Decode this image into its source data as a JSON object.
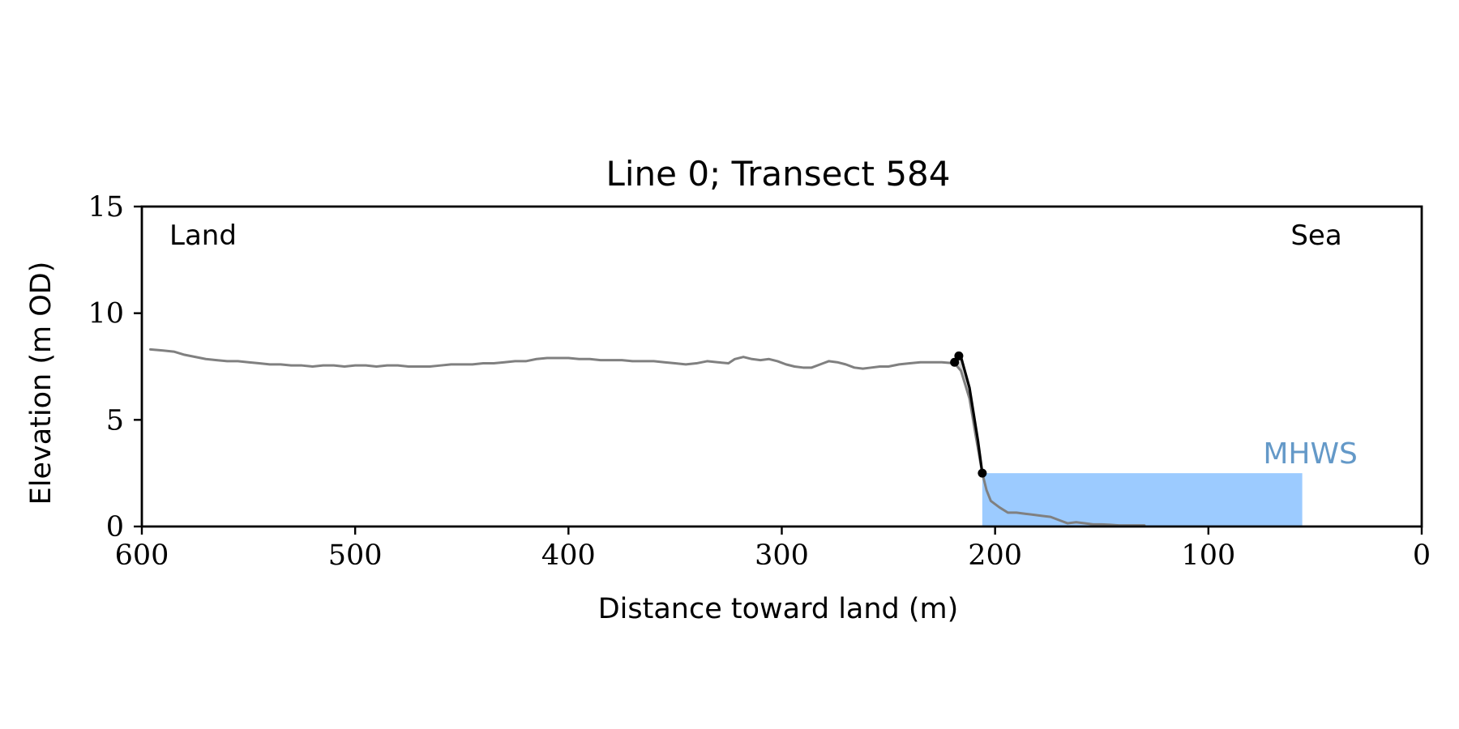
{
  "chart_data": {
    "type": "line",
    "title": "Line 0; Transect 584",
    "xlabel": "Distance toward land (m)",
    "ylabel": "Elevation (m OD)",
    "xlim": [
      600,
      0
    ],
    "ylim": [
      0,
      15
    ],
    "x_ticks": [
      "600",
      "500",
      "400",
      "300",
      "200",
      "100",
      "0"
    ],
    "y_ticks": [
      "0",
      "5",
      "10",
      "15"
    ],
    "grid": false,
    "annotations": {
      "land": "Land",
      "sea": "Sea",
      "mhws": "MHWS"
    },
    "mhws": {
      "elevation": 2.5,
      "x_start": 206,
      "x_end": 56
    },
    "series": [
      {
        "values": [
          [
            596,
            8.3
          ],
          [
            590,
            8.25
          ],
          [
            585,
            8.2
          ],
          [
            580,
            8.05
          ],
          [
            575,
            7.95
          ],
          [
            570,
            7.85
          ],
          [
            565,
            7.8
          ],
          [
            560,
            7.75
          ],
          [
            555,
            7.75
          ],
          [
            550,
            7.7
          ],
          [
            545,
            7.65
          ],
          [
            540,
            7.6
          ],
          [
            535,
            7.6
          ],
          [
            530,
            7.55
          ],
          [
            525,
            7.55
          ],
          [
            520,
            7.5
          ],
          [
            515,
            7.55
          ],
          [
            510,
            7.55
          ],
          [
            505,
            7.5
          ],
          [
            500,
            7.55
          ],
          [
            495,
            7.55
          ],
          [
            490,
            7.5
          ],
          [
            485,
            7.55
          ],
          [
            480,
            7.55
          ],
          [
            475,
            7.5
          ],
          [
            470,
            7.5
          ],
          [
            465,
            7.5
          ],
          [
            460,
            7.55
          ],
          [
            455,
            7.6
          ],
          [
            450,
            7.6
          ],
          [
            445,
            7.6
          ],
          [
            440,
            7.65
          ],
          [
            435,
            7.65
          ],
          [
            430,
            7.7
          ],
          [
            425,
            7.75
          ],
          [
            420,
            7.75
          ],
          [
            415,
            7.85
          ],
          [
            410,
            7.9
          ],
          [
            405,
            7.9
          ],
          [
            400,
            7.9
          ],
          [
            395,
            7.85
          ],
          [
            390,
            7.85
          ],
          [
            385,
            7.8
          ],
          [
            380,
            7.8
          ],
          [
            375,
            7.8
          ],
          [
            370,
            7.75
          ],
          [
            365,
            7.75
          ],
          [
            360,
            7.75
          ],
          [
            355,
            7.7
          ],
          [
            350,
            7.65
          ],
          [
            345,
            7.6
          ],
          [
            340,
            7.65
          ],
          [
            335,
            7.75
          ],
          [
            330,
            7.7
          ],
          [
            325,
            7.65
          ],
          [
            322,
            7.85
          ],
          [
            318,
            7.95
          ],
          [
            314,
            7.85
          ],
          [
            310,
            7.8
          ],
          [
            306,
            7.85
          ],
          [
            302,
            7.75
          ],
          [
            298,
            7.6
          ],
          [
            294,
            7.5
          ],
          [
            290,
            7.45
          ],
          [
            286,
            7.45
          ],
          [
            282,
            7.6
          ],
          [
            278,
            7.75
          ],
          [
            274,
            7.7
          ],
          [
            270,
            7.6
          ],
          [
            266,
            7.45
          ],
          [
            262,
            7.4
          ],
          [
            258,
            7.45
          ],
          [
            254,
            7.5
          ],
          [
            250,
            7.5
          ],
          [
            245,
            7.6
          ],
          [
            240,
            7.65
          ],
          [
            235,
            7.7
          ],
          [
            230,
            7.7
          ],
          [
            225,
            7.7
          ],
          [
            219,
            7.65
          ],
          [
            216,
            7.3
          ],
          [
            212,
            6.0
          ],
          [
            209,
            4.2
          ],
          [
            206,
            2.5
          ],
          [
            204,
            1.7
          ],
          [
            202,
            1.2
          ],
          [
            198,
            0.9
          ],
          [
            194,
            0.65
          ],
          [
            190,
            0.65
          ],
          [
            186,
            0.6
          ],
          [
            182,
            0.55
          ],
          [
            178,
            0.5
          ],
          [
            174,
            0.45
          ],
          [
            170,
            0.3
          ],
          [
            166,
            0.15
          ],
          [
            162,
            0.2
          ],
          [
            158,
            0.15
          ],
          [
            154,
            0.1
          ],
          [
            150,
            0.1
          ],
          [
            146,
            0.08
          ],
          [
            142,
            0.05
          ],
          [
            136,
            0.05
          ],
          [
            130,
            0.05
          ]
        ],
        "color": "#808080"
      },
      {
        "values": [
          [
            219,
            7.7
          ],
          [
            217,
            8.0
          ],
          [
            216,
            7.95
          ],
          [
            212,
            6.5
          ],
          [
            208,
            4.0
          ],
          [
            206,
            2.5
          ]
        ],
        "color": "#000000"
      }
    ],
    "points": [
      [
        219,
        7.7
      ],
      [
        217,
        8.0
      ],
      [
        206,
        2.5
      ]
    ],
    "colors": {
      "profile": "#808080",
      "cliff": "#000000",
      "cliff_fill": "#d3d3d3",
      "mhws_fill": "#9ccbff",
      "mhws_label": "#6499c8",
      "axis": "#000000"
    }
  }
}
